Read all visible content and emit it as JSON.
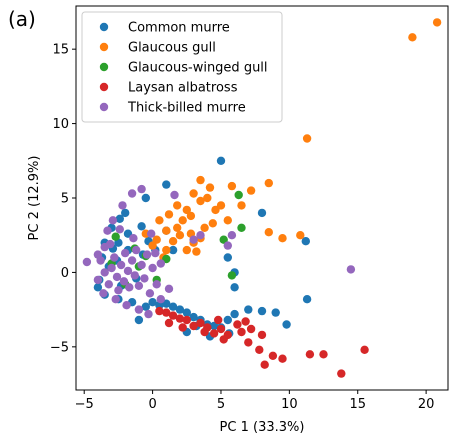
{
  "panel_label": "(a)",
  "chart_data": {
    "type": "scatter",
    "xlabel": "PC 1 (33.3%)",
    "ylabel": "PC 2 (12.9%)",
    "xlim": [
      -5.6,
      21.6
    ],
    "ylim": [
      -7.9,
      17.9
    ],
    "xticks": [
      -5,
      0,
      5,
      10,
      15,
      20
    ],
    "yticks": [
      -5,
      0,
      5,
      10,
      15
    ],
    "grid": false,
    "legend_position": "top-left",
    "series": [
      {
        "name": "Common murre",
        "color": "#1f77b4",
        "points": [
          [
            5,
            7.5
          ],
          [
            1,
            5.9
          ],
          [
            -0.5,
            5
          ],
          [
            -2,
            4
          ],
          [
            -2.4,
            3.6
          ],
          [
            -3,
            3
          ],
          [
            -3.5,
            2
          ],
          [
            -3.7,
            1
          ],
          [
            -3.9,
            -0.5
          ],
          [
            -4,
            -1
          ],
          [
            -3.5,
            -1.5
          ],
          [
            -2.5,
            -1.8
          ],
          [
            -1.5,
            -2
          ],
          [
            -0.5,
            -2.3
          ],
          [
            0,
            -2
          ],
          [
            0.5,
            -2.2
          ],
          [
            1,
            -2.1
          ],
          [
            1.5,
            -2.3
          ],
          [
            2,
            -2.5
          ],
          [
            2.5,
            -2.7
          ],
          [
            3,
            -3
          ],
          [
            3.5,
            -3.2
          ],
          [
            4,
            -3.5
          ],
          [
            4.5,
            -3.6
          ],
          [
            5,
            -3.7
          ],
          [
            5.5,
            -3.2
          ],
          [
            6,
            -2.8
          ],
          [
            7,
            -2.5
          ],
          [
            8,
            -2.6
          ],
          [
            9,
            -2.7
          ],
          [
            9.8,
            -3.5
          ],
          [
            11.3,
            -1.8
          ],
          [
            11.2,
            2.1
          ],
          [
            5.5,
            1
          ],
          [
            6,
            -1
          ],
          [
            8,
            4
          ],
          [
            6,
            0
          ],
          [
            -0.3,
            2.1
          ],
          [
            1.5,
            1.5
          ],
          [
            1,
            2.8
          ],
          [
            0.2,
            1.5
          ],
          [
            -0.7,
            1.2
          ],
          [
            -1.8,
            1.5
          ],
          [
            -2.6,
            0.8
          ],
          [
            -1.2,
            -0.4
          ],
          [
            -2.3,
            -0.9
          ],
          [
            -1,
            -3.2
          ],
          [
            2.5,
            -4
          ],
          [
            4.2,
            -4.3
          ],
          [
            5.6,
            -4.1
          ],
          [
            3.2,
            -3.6
          ],
          [
            -2.5,
            2
          ],
          [
            -2.9,
            1.6
          ],
          [
            -3.2,
            0.4
          ],
          [
            -1.8,
            2.6
          ],
          [
            -0.8,
            3.1
          ]
        ]
      },
      {
        "name": "Glaucous gull",
        "color": "#ff7f0e",
        "points": [
          [
            20.8,
            16.8
          ],
          [
            19,
            15.8
          ],
          [
            11.3,
            9
          ],
          [
            5.8,
            5.8
          ],
          [
            8.5,
            6
          ],
          [
            3.5,
            6.2
          ],
          [
            4.2,
            5.7
          ],
          [
            3,
            5.3
          ],
          [
            2.5,
            4.2
          ],
          [
            1.2,
            3.9
          ],
          [
            2,
            2.5
          ],
          [
            3,
            2
          ],
          [
            3.8,
            3
          ],
          [
            4.6,
            4.2
          ],
          [
            2.2,
            3.5
          ],
          [
            1.5,
            2.1
          ],
          [
            1,
            1.5
          ],
          [
            -0.5,
            2.6
          ],
          [
            0.5,
            3.5
          ],
          [
            5,
            4.5
          ],
          [
            3.5,
            4.8
          ],
          [
            4,
            5
          ],
          [
            2.8,
            3.8
          ],
          [
            1.8,
            4.5
          ],
          [
            0,
            1.8
          ],
          [
            0.8,
            1
          ],
          [
            2.5,
            1.5
          ],
          [
            3.5,
            2.3
          ],
          [
            5.5,
            3.5
          ],
          [
            6.5,
            4.5
          ],
          [
            7.2,
            5.5
          ],
          [
            10.8,
            2.5
          ],
          [
            9.5,
            2.3
          ],
          [
            8.5,
            2.7
          ],
          [
            1,
            2.8
          ],
          [
            0.3,
            2.2
          ],
          [
            2.8,
            2.6
          ],
          [
            4.4,
            3.3
          ],
          [
            3.2,
            1.4
          ],
          [
            1.8,
            3
          ]
        ]
      },
      {
        "name": "Glaucous-winged gull",
        "color": "#2ca02c",
        "points": [
          [
            6.3,
            5.2
          ],
          [
            6.5,
            3
          ],
          [
            5.2,
            2.2
          ],
          [
            5.8,
            -0.2
          ],
          [
            -0.5,
            1.1
          ],
          [
            0.3,
            -0.5
          ],
          [
            1,
            0.9
          ],
          [
            -1.3,
            1.6
          ],
          [
            -2.7,
            2.4
          ],
          [
            -2,
            -0.8
          ],
          [
            -1,
            0.4
          ],
          [
            -3,
            0.6
          ]
        ]
      },
      {
        "name": "Laysan albatross",
        "color": "#d62728",
        "points": [
          [
            13.8,
            -6.8
          ],
          [
            15.5,
            -5.2
          ],
          [
            11.5,
            -5.5
          ],
          [
            12.5,
            -5.5
          ],
          [
            9.5,
            -5.8
          ],
          [
            8.2,
            -6.2
          ],
          [
            8.8,
            -5.6
          ],
          [
            7.8,
            -5.2
          ],
          [
            7,
            -4.7
          ],
          [
            6.5,
            -4
          ],
          [
            5.5,
            -4.2
          ],
          [
            5,
            -3.8
          ],
          [
            4.5,
            -4.1
          ],
          [
            4,
            -3.7
          ],
          [
            3.5,
            -3.4
          ],
          [
            3,
            -3.6
          ],
          [
            2.5,
            -3.2
          ],
          [
            2,
            -3.1
          ],
          [
            1.5,
            -2.9
          ],
          [
            1,
            -2.7
          ],
          [
            0.5,
            -2.6
          ],
          [
            6.8,
            -3.3
          ],
          [
            7.2,
            -3.8
          ],
          [
            8,
            -4.2
          ],
          [
            3.8,
            -4
          ],
          [
            4.8,
            -3.2
          ],
          [
            2.2,
            -3.7
          ],
          [
            1.2,
            -3.4
          ],
          [
            5.2,
            -4.5
          ],
          [
            6.2,
            -3.5
          ]
        ]
      },
      {
        "name": "Thick-billed murre",
        "color": "#9467bd",
        "points": [
          [
            14.5,
            0.2
          ],
          [
            5.8,
            2.5
          ],
          [
            5.5,
            1.8
          ],
          [
            3.5,
            2.5
          ],
          [
            3,
            2.2
          ],
          [
            -4.8,
            0.7
          ],
          [
            -4,
            -0.5
          ],
          [
            -3.8,
            0.8
          ],
          [
            -3.5,
            0
          ],
          [
            -3.2,
            -0.8
          ],
          [
            -3,
            0.3
          ],
          [
            -2.8,
            1
          ],
          [
            -2.6,
            -0.3
          ],
          [
            -2.5,
            -1.2
          ],
          [
            -2.3,
            0.5
          ],
          [
            -2.1,
            -0.6
          ],
          [
            -2,
            1.3
          ],
          [
            -1.8,
            0.1
          ],
          [
            -1.7,
            -1
          ],
          [
            -1.5,
            0.8
          ],
          [
            -1.3,
            -0.2
          ],
          [
            -1.2,
            1.5
          ],
          [
            -1,
            -0.9
          ],
          [
            -0.8,
            0.5
          ],
          [
            -0.6,
            -0.4
          ],
          [
            -0.4,
            1.2
          ],
          [
            -0.2,
            -1.4
          ],
          [
            0,
            0.3
          ],
          [
            0.3,
            -0.8
          ],
          [
            0.6,
            0.6
          ],
          [
            -3.3,
            2.8
          ],
          [
            -2.9,
            3.5
          ],
          [
            -2.2,
            4.5
          ],
          [
            -1.5,
            5.3
          ],
          [
            -0.8,
            5.6
          ],
          [
            1.6,
            5.2
          ],
          [
            -3.5,
            1.7
          ],
          [
            -4,
            1.2
          ],
          [
            -2.7,
            -1.8
          ],
          [
            -1.9,
            -2.2
          ],
          [
            -1,
            -2.5
          ],
          [
            -0.3,
            -2.8
          ],
          [
            0.6,
            -1.8
          ],
          [
            1.2,
            -1.1
          ],
          [
            -3.6,
            -1.4
          ],
          [
            -3.1,
            1.9
          ],
          [
            -1.4,
            2.3
          ],
          [
            -2.4,
            2.9
          ],
          [
            0.2,
            1.3
          ],
          [
            -0.1,
            2.6
          ]
        ]
      }
    ]
  }
}
